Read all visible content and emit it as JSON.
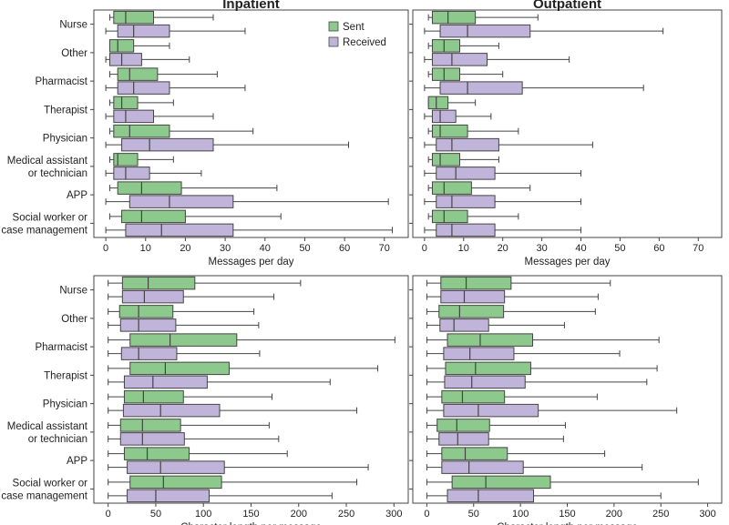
{
  "colors": {
    "sent": "#8dc98d",
    "received": "#c0b4da",
    "edge": "#444444",
    "frame": "#444444"
  },
  "legend": {
    "sent_label": "Sent",
    "received_label": "Received"
  },
  "chart_data": [
    {
      "id": "inpatient-messages",
      "type": "boxplot",
      "orientation": "horizontal",
      "title": "Inpatient",
      "xlabel": "Messages per day",
      "xlim": [
        -3,
        76
      ],
      "xticks": [
        0,
        10,
        20,
        30,
        40,
        50,
        60,
        70
      ],
      "categories": [
        "Nurse",
        "Other",
        "Pharmacist",
        "Therapist",
        "Physician",
        "Medical assistant\nor technician",
        "APP",
        "Social worker or\ncase management"
      ],
      "series": [
        {
          "name": "Sent",
          "boxes": [
            {
              "min": 1,
              "q1": 2,
              "med": 5,
              "q3": 12,
              "max": 27
            },
            {
              "min": 1,
              "q1": 1,
              "med": 3,
              "q3": 7,
              "max": 16
            },
            {
              "min": 1,
              "q1": 3,
              "med": 6,
              "q3": 13,
              "max": 28
            },
            {
              "min": 1,
              "q1": 2,
              "med": 4,
              "q3": 8,
              "max": 17
            },
            {
              "min": 1,
              "q1": 2,
              "med": 6,
              "q3": 16,
              "max": 37
            },
            {
              "min": 1,
              "q1": 2,
              "med": 3,
              "q3": 8,
              "max": 17
            },
            {
              "min": 1,
              "q1": 3,
              "med": 9,
              "q3": 19,
              "max": 43
            },
            {
              "min": 1,
              "q1": 4,
              "med": 9,
              "q3": 20,
              "max": 44
            }
          ]
        },
        {
          "name": "Received",
          "boxes": [
            {
              "min": 0,
              "q1": 3,
              "med": 7,
              "q3": 16,
              "max": 35
            },
            {
              "min": 0,
              "q1": 1,
              "med": 4,
              "q3": 9,
              "max": 21
            },
            {
              "min": 0,
              "q1": 3,
              "med": 7,
              "q3": 16,
              "max": 35
            },
            {
              "min": 0,
              "q1": 2,
              "med": 5,
              "q3": 12,
              "max": 27
            },
            {
              "min": 0,
              "q1": 4,
              "med": 11,
              "q3": 27,
              "max": 61
            },
            {
              "min": 0,
              "q1": 2,
              "med": 5,
              "q3": 11,
              "max": 24
            },
            {
              "min": 0,
              "q1": 6,
              "med": 16,
              "q3": 32,
              "max": 71
            },
            {
              "min": 0,
              "q1": 5,
              "med": 14,
              "q3": 32,
              "max": 72
            }
          ]
        }
      ]
    },
    {
      "id": "outpatient-messages",
      "type": "boxplot",
      "orientation": "horizontal",
      "title": "Outpatient",
      "xlabel": "Messages per day",
      "xlim": [
        -3,
        76
      ],
      "xticks": [
        0,
        10,
        20,
        30,
        40,
        50,
        60,
        70
      ],
      "categories": [
        "Nurse",
        "Other",
        "Pharmacist",
        "Therapist",
        "Physician",
        "Medical assistant\nor technician",
        "APP",
        "Social worker or\ncase management"
      ],
      "series": [
        {
          "name": "Sent",
          "boxes": [
            {
              "min": 1,
              "q1": 2,
              "med": 6,
              "q3": 13,
              "max": 29
            },
            {
              "min": 1,
              "q1": 2,
              "med": 5,
              "q3": 9,
              "max": 19
            },
            {
              "min": 1,
              "q1": 2,
              "med": 5,
              "q3": 9,
              "max": 20
            },
            {
              "min": 1,
              "q1": 1,
              "med": 3,
              "q3": 6,
              "max": 13
            },
            {
              "min": 1,
              "q1": 2,
              "med": 4,
              "q3": 11,
              "max": 24
            },
            {
              "min": 1,
              "q1": 2,
              "med": 4,
              "q3": 9,
              "max": 19
            },
            {
              "min": 1,
              "q1": 2,
              "med": 5,
              "q3": 12,
              "max": 27
            },
            {
              "min": 1,
              "q1": 2,
              "med": 5,
              "q3": 11,
              "max": 24
            }
          ]
        },
        {
          "name": "Received",
          "boxes": [
            {
              "min": 0,
              "q1": 4,
              "med": 11,
              "q3": 27,
              "max": 61
            },
            {
              "min": 0,
              "q1": 2,
              "med": 7,
              "q3": 16,
              "max": 37
            },
            {
              "min": 0,
              "q1": 4,
              "med": 11,
              "q3": 25,
              "max": 56
            },
            {
              "min": 0,
              "q1": 2,
              "med": 4,
              "q3": 8,
              "max": 17
            },
            {
              "min": 0,
              "q1": 3,
              "med": 7,
              "q3": 19,
              "max": 43
            },
            {
              "min": 0,
              "q1": 3,
              "med": 8,
              "q3": 18,
              "max": 40
            },
            {
              "min": 0,
              "q1": 3,
              "med": 7,
              "q3": 18,
              "max": 40
            },
            {
              "min": 0,
              "q1": 3,
              "med": 7,
              "q3": 18,
              "max": 40
            }
          ]
        }
      ]
    },
    {
      "id": "inpatient-length",
      "type": "boxplot",
      "orientation": "horizontal",
      "xlabel": "Character length per message",
      "xlim": [
        -15,
        315
      ],
      "xticks": [
        0,
        50,
        100,
        150,
        200,
        250,
        300
      ],
      "categories": [
        "Nurse",
        "Other",
        "Pharmacist",
        "Therapist",
        "Physician",
        "Medical assistant\nor technician",
        "APP",
        "Social worker or\ncase management"
      ],
      "series": [
        {
          "name": "Sent",
          "boxes": [
            {
              "min": 0,
              "q1": 15,
              "med": 42,
              "q3": 91,
              "max": 202
            },
            {
              "min": 0,
              "q1": 12,
              "med": 32,
              "q3": 68,
              "max": 153
            },
            {
              "min": 0,
              "q1": 23,
              "med": 65,
              "q3": 135,
              "max": 301
            },
            {
              "min": 0,
              "q1": 23,
              "med": 60,
              "q3": 127,
              "max": 283
            },
            {
              "min": 0,
              "q1": 17,
              "med": 37,
              "q3": 79,
              "max": 172
            },
            {
              "min": 0,
              "q1": 13,
              "med": 36,
              "q3": 76,
              "max": 169
            },
            {
              "min": 0,
              "q1": 17,
              "med": 41,
              "q3": 85,
              "max": 188
            },
            {
              "min": 0,
              "q1": 23,
              "med": 58,
              "q3": 119,
              "max": 261
            }
          ]
        },
        {
          "name": "Received",
          "boxes": [
            {
              "min": 0,
              "q1": 15,
              "med": 38,
              "q3": 79,
              "max": 174
            },
            {
              "min": 0,
              "q1": 13,
              "med": 32,
              "q3": 71,
              "max": 158
            },
            {
              "min": 0,
              "q1": 14,
              "med": 32,
              "q3": 72,
              "max": 159
            },
            {
              "min": 0,
              "q1": 17,
              "med": 47,
              "q3": 104,
              "max": 233
            },
            {
              "min": 0,
              "q1": 16,
              "med": 55,
              "q3": 117,
              "max": 261
            },
            {
              "min": 0,
              "q1": 13,
              "med": 36,
              "q3": 80,
              "max": 179
            },
            {
              "min": 0,
              "q1": 20,
              "med": 55,
              "q3": 122,
              "max": 273
            },
            {
              "min": 0,
              "q1": 20,
              "med": 50,
              "q3": 106,
              "max": 235
            }
          ]
        }
      ]
    },
    {
      "id": "outpatient-length",
      "type": "boxplot",
      "orientation": "horizontal",
      "xlabel": "Character length per message",
      "xlim": [
        -15,
        315
      ],
      "xticks": [
        0,
        50,
        100,
        150,
        200,
        250,
        300
      ],
      "categories": [
        "Nurse",
        "Other",
        "Pharmacist",
        "Therapist",
        "Physician",
        "Medical assistant\nor technician",
        "APP",
        "Social worker or\ncase management"
      ],
      "series": [
        {
          "name": "Sent",
          "boxes": [
            {
              "min": 0,
              "q1": 15,
              "med": 42,
              "q3": 90,
              "max": 196
            },
            {
              "min": 0,
              "q1": 13,
              "med": 35,
              "q3": 82,
              "max": 180
            },
            {
              "min": 0,
              "q1": 22,
              "med": 57,
              "q3": 113,
              "max": 248
            },
            {
              "min": 0,
              "q1": 20,
              "med": 52,
              "q3": 111,
              "max": 246
            },
            {
              "min": 0,
              "q1": 16,
              "med": 38,
              "q3": 83,
              "max": 182
            },
            {
              "min": 0,
              "q1": 11,
              "med": 32,
              "q3": 67,
              "max": 148
            },
            {
              "min": 0,
              "q1": 16,
              "med": 41,
              "q3": 86,
              "max": 190
            },
            {
              "min": 0,
              "q1": 27,
              "med": 63,
              "q3": 132,
              "max": 290
            }
          ]
        },
        {
          "name": "Received",
          "boxes": [
            {
              "min": 0,
              "q1": 15,
              "med": 40,
              "q3": 83,
              "max": 183
            },
            {
              "min": 0,
              "q1": 14,
              "med": 29,
              "q3": 66,
              "max": 147
            },
            {
              "min": 0,
              "q1": 18,
              "med": 46,
              "q3": 93,
              "max": 206
            },
            {
              "min": 0,
              "q1": 19,
              "med": 48,
              "q3": 105,
              "max": 235
            },
            {
              "min": 0,
              "q1": 18,
              "med": 55,
              "q3": 119,
              "max": 267
            },
            {
              "min": 0,
              "q1": 13,
              "med": 33,
              "q3": 66,
              "max": 146
            },
            {
              "min": 0,
              "q1": 16,
              "med": 45,
              "q3": 103,
              "max": 230
            },
            {
              "min": 0,
              "q1": 22,
              "med": 55,
              "q3": 114,
              "max": 250
            }
          ]
        }
      ]
    }
  ]
}
